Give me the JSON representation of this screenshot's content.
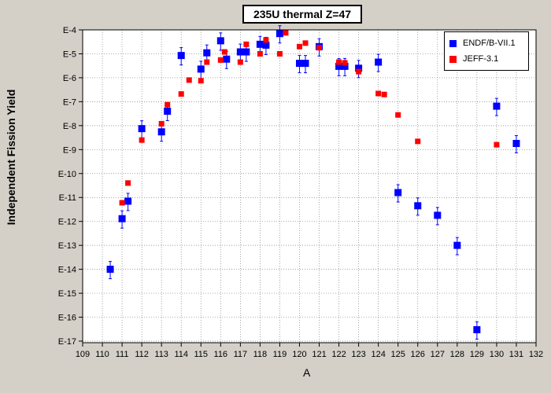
{
  "chart_data": {
    "type": "scatter",
    "title": "235U thermal Z=47",
    "xlabel": "A",
    "ylabel": "Independent Fission Yield",
    "xlim": [
      109,
      132
    ],
    "ylim_exponent": [
      -17,
      -4
    ],
    "y_scale": "log",
    "x_ticks": [
      "109",
      "110",
      "111",
      "112",
      "113",
      "114",
      "115",
      "116",
      "117",
      "118",
      "119",
      "120",
      "121",
      "122",
      "123",
      "124",
      "125",
      "126",
      "127",
      "128",
      "129",
      "130",
      "131",
      "132"
    ],
    "y_ticks": [
      "E-4",
      "E-5",
      "E-6",
      "E-7",
      "E-8",
      "E-9",
      "E-10",
      "E-11",
      "E-12",
      "E-13",
      "E-14",
      "E-15",
      "E-16",
      "E-17"
    ],
    "grid": true,
    "legend_position": "top-right",
    "series": [
      {
        "name": "ENDF/B-VII.1",
        "color": "#0000ff",
        "marker": "square",
        "points": [
          {
            "x": 110.4,
            "y": "1.0E-14"
          },
          {
            "x": 111.0,
            "y": "1.3E-12"
          },
          {
            "x": 111.3,
            "y": "7.0E-12"
          },
          {
            "x": 112.0,
            "y": "7.5E-9"
          },
          {
            "x": 113.0,
            "y": "5.5E-9"
          },
          {
            "x": 113.3,
            "y": "4.0E-8"
          },
          {
            "x": 114.0,
            "y": "8.5E-6"
          },
          {
            "x": 115.0,
            "y": "2.3E-6"
          },
          {
            "x": 115.3,
            "y": "1.1E-5"
          },
          {
            "x": 116.0,
            "y": "3.5E-5"
          },
          {
            "x": 116.3,
            "y": "6.0E-6"
          },
          {
            "x": 117.0,
            "y": "1.2E-5"
          },
          {
            "x": 117.3,
            "y": "1.2E-5"
          },
          {
            "x": 118.0,
            "y": "2.5E-5"
          },
          {
            "x": 118.3,
            "y": "2.3E-5"
          },
          {
            "x": 119.0,
            "y": "7.0E-5"
          },
          {
            "x": 120.0,
            "y": "4.0E-6"
          },
          {
            "x": 120.3,
            "y": "4.0E-6"
          },
          {
            "x": 121.0,
            "y": "2.0E-5"
          },
          {
            "x": 122.0,
            "y": "3.0E-6"
          },
          {
            "x": 122.3,
            "y": "3.0E-6"
          },
          {
            "x": 123.0,
            "y": "2.5E-6"
          },
          {
            "x": 124.0,
            "y": "4.5E-6"
          },
          {
            "x": 125.0,
            "y": "1.6E-11"
          },
          {
            "x": 126.0,
            "y": "4.5E-12"
          },
          {
            "x": 127.0,
            "y": "1.8E-12"
          },
          {
            "x": 128.0,
            "y": "1.0E-13"
          },
          {
            "x": 129.0,
            "y": "3.0E-17"
          },
          {
            "x": 130.0,
            "y": "6.5E-8"
          },
          {
            "x": 131.0,
            "y": "1.8E-9"
          }
        ]
      },
      {
        "name": "JEFF-3.1",
        "color": "#ff0000",
        "marker": "square",
        "points": [
          {
            "x": 111.0,
            "y": "6.0E-12"
          },
          {
            "x": 111.3,
            "y": "4.0E-11"
          },
          {
            "x": 112.0,
            "y": "2.5E-9"
          },
          {
            "x": 113.0,
            "y": "1.2E-8"
          },
          {
            "x": 113.3,
            "y": "7.5E-8"
          },
          {
            "x": 114.0,
            "y": "2.1E-7"
          },
          {
            "x": 114.4,
            "y": "8.0E-7"
          },
          {
            "x": 115.0,
            "y": "7.5E-7"
          },
          {
            "x": 115.3,
            "y": "4.5E-6"
          },
          {
            "x": 116.0,
            "y": "5.5E-6"
          },
          {
            "x": 116.2,
            "y": "1.2E-5"
          },
          {
            "x": 117.0,
            "y": "4.5E-6"
          },
          {
            "x": 117.3,
            "y": "2.5E-5"
          },
          {
            "x": 118.0,
            "y": "1.0E-5"
          },
          {
            "x": 118.3,
            "y": "3.8E-5"
          },
          {
            "x": 119.0,
            "y": "1.0E-5"
          },
          {
            "x": 119.3,
            "y": "7.5E-5"
          },
          {
            "x": 120.0,
            "y": "2.0E-5"
          },
          {
            "x": 120.3,
            "y": "2.8E-5"
          },
          {
            "x": 121.0,
            "y": "1.8E-5"
          },
          {
            "x": 122.0,
            "y": "4.5E-6"
          },
          {
            "x": 122.3,
            "y": "4.2E-6"
          },
          {
            "x": 123.0,
            "y": "1.8E-6"
          },
          {
            "x": 124.0,
            "y": "2.2E-7"
          },
          {
            "x": 124.3,
            "y": "2.0E-7"
          },
          {
            "x": 125.0,
            "y": "2.8E-8"
          },
          {
            "x": 126.0,
            "y": "2.2E-9"
          },
          {
            "x": 130.0,
            "y": "1.6E-9"
          }
        ]
      }
    ]
  }
}
